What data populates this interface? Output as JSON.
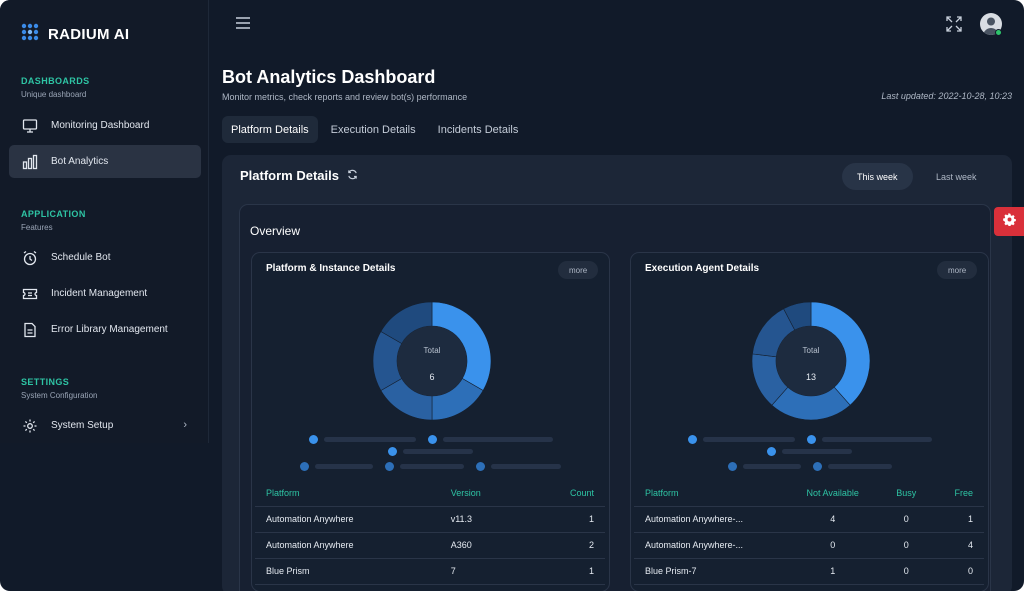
{
  "brand": {
    "name": "RADIUM AI",
    "logo_icon": "grid-dots-icon",
    "logo_color": "#3b8be8"
  },
  "sidebar": {
    "sections": [
      {
        "title": "DASHBOARDS",
        "subtitle": "Unique dashboard"
      },
      {
        "title": "APPLICATION",
        "subtitle": "Features"
      },
      {
        "title": "SETTINGS",
        "subtitle": "System Configuration"
      }
    ],
    "items": [
      {
        "label": "Monitoring Dashboard",
        "icon": "monitor-icon"
      },
      {
        "label": "Bot Analytics",
        "icon": "bar-chart-icon",
        "active": true
      },
      {
        "label": "Schedule Bot",
        "icon": "alarm-clock-icon"
      },
      {
        "label": "Incident Management",
        "icon": "ticket-icon"
      },
      {
        "label": "Error Library Management",
        "icon": "file-icon"
      },
      {
        "label": "System Setup",
        "icon": "gear-icon",
        "has_submenu": true
      }
    ]
  },
  "header": {
    "title": "Bot Analytics Dashboard",
    "subtitle": "Monitor metrics, check reports and review bot(s) performance",
    "last_updated": "Last updated: 2022-10-28, 10:23"
  },
  "tabs": [
    {
      "label": "Platform Details",
      "active": true
    },
    {
      "label": "Execution Details"
    },
    {
      "label": "Incidents Details"
    }
  ],
  "panel": {
    "title": "Platform Details",
    "periods": [
      {
        "label": "This week",
        "active": true
      },
      {
        "label": "Last week"
      }
    ],
    "overview_title": "Overview"
  },
  "cards": [
    {
      "title": "Platform & Instance Details",
      "more_label": "more",
      "donut": {
        "total_label": "Total",
        "total_value": "6",
        "slices": [
          {
            "value": 2,
            "color": "#3a92ec"
          },
          {
            "value": 1,
            "color": "#2d6fb8"
          },
          {
            "value": 1,
            "color": "#2a61a2"
          },
          {
            "value": 1,
            "color": "#255590"
          },
          {
            "value": 1,
            "color": "#1f4a7e"
          }
        ]
      },
      "legend_rows": [
        3,
        3
      ],
      "table": {
        "headers": [
          "Platform",
          "Version",
          "Count"
        ],
        "rows": [
          [
            "Automation Anywhere",
            "v11.3",
            "1"
          ],
          [
            "Automation Anywhere",
            "A360",
            "2"
          ],
          [
            "Blue Prism",
            "7",
            "1"
          ]
        ]
      }
    },
    {
      "title": "Execution Agent Details",
      "more_label": "more",
      "donut": {
        "total_label": "Total",
        "total_value": "13",
        "slices": [
          {
            "value": 5,
            "color": "#3a92ec"
          },
          {
            "value": 3,
            "color": "#2d6fb8"
          },
          {
            "value": 2,
            "color": "#2a61a2"
          },
          {
            "value": 2,
            "color": "#255590"
          },
          {
            "value": 1,
            "color": "#1f4a7e"
          }
        ]
      },
      "legend_rows": [
        3,
        2
      ],
      "table": {
        "headers": [
          "Platform",
          "Not Available",
          "Busy",
          "Free"
        ],
        "rows": [
          [
            "Automation Anywhere-...",
            "4",
            "0",
            "1"
          ],
          [
            "Automation Anywhere-...",
            "0",
            "0",
            "4"
          ],
          [
            "Blue Prism-7",
            "1",
            "0",
            "0"
          ]
        ]
      }
    }
  ],
  "colors": {
    "accent_teal": "#2ec4a4",
    "accent_blue": "#3a92ec",
    "alert_red": "#d9303a",
    "online_green": "#2ec46b"
  },
  "toolbar_icons": [
    "hamburger-menu-icon",
    "fullscreen-icon",
    "user-avatar-icon"
  ]
}
